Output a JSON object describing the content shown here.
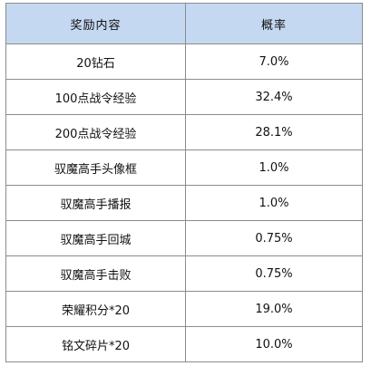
{
  "table": {
    "headers": [
      "奖励内容",
      "概率"
    ],
    "rows": [
      {
        "item": "20钻石",
        "prob": "7.0%"
      },
      {
        "item": "100点战令经验",
        "prob": "32.4%"
      },
      {
        "item": "200点战令经验",
        "prob": "28.1%"
      },
      {
        "item": "驭魔高手头像框",
        "prob": "1.0%"
      },
      {
        "item": "驭魔高手播报",
        "prob": "1.0%"
      },
      {
        "item": "驭魔高手回城",
        "prob": "0.75%"
      },
      {
        "item": "驭魔高手击败",
        "prob": "0.75%"
      },
      {
        "item": "荣耀积分*20",
        "prob": "19.0%"
      },
      {
        "item": "铭文碎片*20",
        "prob": "10.0%"
      }
    ]
  },
  "colors": {
    "header_bg": "#c5d8f1",
    "border": "#8c8c8c"
  }
}
